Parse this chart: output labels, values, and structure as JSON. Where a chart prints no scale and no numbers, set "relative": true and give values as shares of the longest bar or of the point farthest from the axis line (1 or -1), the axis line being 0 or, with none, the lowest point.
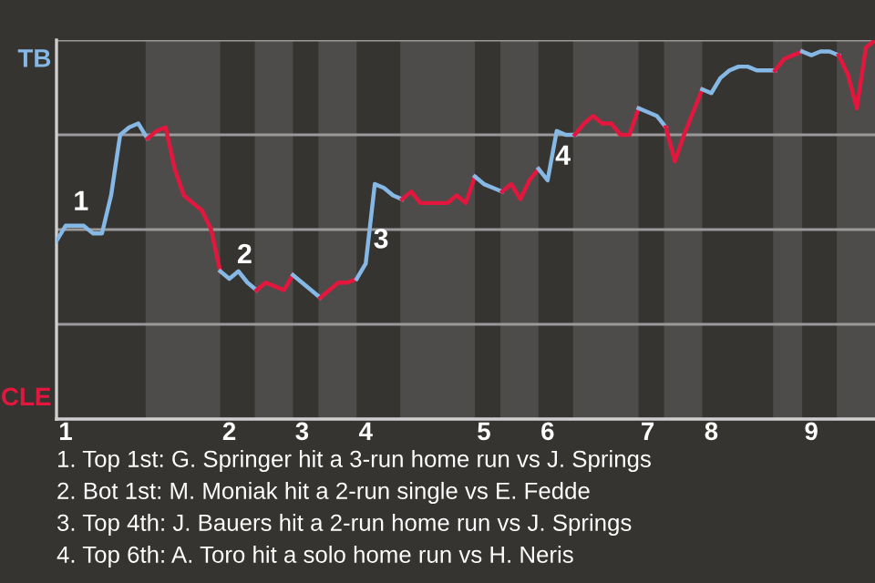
{
  "chart_data": {
    "type": "line",
    "relative": true,
    "categories": [
      null,
      "1",
      null,
      null,
      null,
      null,
      null,
      null,
      null,
      null,
      null,
      null,
      null,
      null,
      null,
      null,
      null,
      null,
      null,
      "2",
      null,
      null,
      null,
      null,
      null,
      null,
      null,
      "3",
      null,
      null,
      null,
      null,
      null,
      null,
      "4",
      null,
      null,
      null,
      null,
      null,
      null,
      null,
      null,
      null,
      null,
      null,
      null,
      "5",
      null,
      null,
      null,
      null,
      null,
      null,
      "6",
      null,
      null,
      null,
      null,
      null,
      null,
      null,
      null,
      null,
      null,
      "7",
      null,
      null,
      null,
      null,
      null,
      null,
      "8",
      null,
      null,
      null,
      null,
      null,
      null,
      null,
      null,
      null,
      null,
      "9",
      null,
      null,
      null,
      null,
      null,
      null,
      null
    ],
    "series": [
      {
        "color": "#86b8e6",
        "values": [
          0.47,
          0.51,
          0.51,
          0.51,
          0.49,
          0.49,
          0.59,
          0.75,
          0.77,
          0.78,
          0.74,
          null,
          null,
          null,
          null,
          null,
          null,
          null,
          null,
          null,
          null,
          null,
          null,
          null,
          null,
          null,
          null,
          null,
          null,
          null,
          null,
          null,
          null,
          null,
          null,
          null,
          null,
          null,
          null,
          null,
          null,
          null,
          null,
          null,
          null,
          null,
          null,
          null,
          null,
          null,
          null,
          null,
          null,
          null,
          null,
          null,
          null,
          null,
          null,
          null,
          null,
          null,
          null,
          null,
          null,
          null,
          null,
          null,
          null,
          null,
          null,
          null,
          null,
          null,
          null,
          null,
          null,
          null,
          null,
          null,
          null,
          null,
          null,
          null,
          null,
          null,
          null,
          null,
          null,
          null,
          null
        ]
      },
      {
        "color": "#e3173e",
        "values": [
          null,
          null,
          null,
          null,
          null,
          null,
          null,
          null,
          null,
          null,
          0.74,
          0.76,
          0.77,
          0.66,
          0.59,
          0.57,
          0.55,
          0.5,
          0.39,
          null,
          null,
          null,
          null,
          null,
          null,
          null,
          null,
          null,
          null,
          null,
          null,
          null,
          null,
          null,
          null,
          null,
          null,
          null,
          null,
          null,
          null,
          null,
          null,
          null,
          null,
          null,
          null,
          null,
          null,
          null,
          null,
          null,
          null,
          null,
          null,
          null,
          null,
          null,
          null,
          null,
          null,
          null,
          null,
          null,
          null,
          null,
          null,
          null,
          null,
          null,
          null,
          null,
          null,
          null,
          null,
          null,
          null,
          null,
          null,
          null,
          null,
          null,
          null,
          null,
          null,
          null,
          null,
          null,
          null,
          null,
          null
        ]
      },
      {
        "color": "#86b8e6",
        "values": [
          null,
          null,
          null,
          null,
          null,
          null,
          null,
          null,
          null,
          null,
          null,
          null,
          null,
          null,
          null,
          null,
          null,
          null,
          0.39,
          0.37,
          0.39,
          0.36,
          0.34,
          null,
          null,
          null,
          null,
          null,
          null,
          null,
          null,
          null,
          null,
          null,
          null,
          null,
          null,
          null,
          null,
          null,
          null,
          null,
          null,
          null,
          null,
          null,
          null,
          null,
          null,
          null,
          null,
          null,
          null,
          null,
          null,
          null,
          null,
          null,
          null,
          null,
          null,
          null,
          null,
          null,
          null,
          null,
          null,
          null,
          null,
          null,
          null,
          null,
          null,
          null,
          null,
          null,
          null,
          null,
          null,
          null,
          null,
          null,
          null,
          null,
          null,
          null,
          null,
          null,
          null,
          null,
          null
        ]
      },
      {
        "color": "#e3173e",
        "values": [
          null,
          null,
          null,
          null,
          null,
          null,
          null,
          null,
          null,
          null,
          null,
          null,
          null,
          null,
          null,
          null,
          null,
          null,
          null,
          null,
          null,
          null,
          0.34,
          0.36,
          0.35,
          0.34,
          0.38,
          null,
          null,
          null,
          null,
          null,
          null,
          null,
          null,
          null,
          null,
          null,
          null,
          null,
          null,
          null,
          null,
          null,
          null,
          null,
          null,
          null,
          null,
          null,
          null,
          null,
          null,
          null,
          null,
          null,
          null,
          null,
          null,
          null,
          null,
          null,
          null,
          null,
          null,
          null,
          null,
          null,
          null,
          null,
          null,
          null,
          null,
          null,
          null,
          null,
          null,
          null,
          null,
          null,
          null,
          null,
          null,
          null,
          null,
          null,
          null,
          null,
          null,
          null,
          null
        ]
      },
      {
        "color": "#86b8e6",
        "values": [
          null,
          null,
          null,
          null,
          null,
          null,
          null,
          null,
          null,
          null,
          null,
          null,
          null,
          null,
          null,
          null,
          null,
          null,
          null,
          null,
          null,
          null,
          null,
          null,
          null,
          null,
          0.38,
          0.36,
          0.34,
          0.32,
          null,
          null,
          null,
          null,
          null,
          null,
          null,
          null,
          null,
          null,
          null,
          null,
          null,
          null,
          null,
          null,
          null,
          null,
          null,
          null,
          null,
          null,
          null,
          null,
          null,
          null,
          null,
          null,
          null,
          null,
          null,
          null,
          null,
          null,
          null,
          null,
          null,
          null,
          null,
          null,
          null,
          null,
          null,
          null,
          null,
          null,
          null,
          null,
          null,
          null,
          null,
          null,
          null,
          null,
          null,
          null,
          null,
          null,
          null,
          null,
          null
        ]
      },
      {
        "color": "#e3173e",
        "values": [
          null,
          null,
          null,
          null,
          null,
          null,
          null,
          null,
          null,
          null,
          null,
          null,
          null,
          null,
          null,
          null,
          null,
          null,
          null,
          null,
          null,
          null,
          null,
          null,
          null,
          null,
          null,
          null,
          null,
          0.32,
          0.34,
          0.36,
          0.36,
          0.37,
          null,
          null,
          null,
          null,
          null,
          null,
          null,
          null,
          null,
          null,
          null,
          null,
          null,
          null,
          null,
          null,
          null,
          null,
          null,
          null,
          null,
          null,
          null,
          null,
          null,
          null,
          null,
          null,
          null,
          null,
          null,
          null,
          null,
          null,
          null,
          null,
          null,
          null,
          null,
          null,
          null,
          null,
          null,
          null,
          null,
          null,
          null,
          null,
          null,
          null,
          null,
          null,
          null,
          null,
          null,
          null,
          null
        ]
      },
      {
        "color": "#86b8e6",
        "values": [
          null,
          null,
          null,
          null,
          null,
          null,
          null,
          null,
          null,
          null,
          null,
          null,
          null,
          null,
          null,
          null,
          null,
          null,
          null,
          null,
          null,
          null,
          null,
          null,
          null,
          null,
          null,
          null,
          null,
          null,
          null,
          null,
          null,
          0.37,
          0.41,
          0.62,
          0.61,
          0.59,
          0.58,
          null,
          null,
          null,
          null,
          null,
          null,
          null,
          null,
          null,
          null,
          null,
          null,
          null,
          null,
          null,
          null,
          null,
          null,
          null,
          null,
          null,
          null,
          null,
          null,
          null,
          null,
          null,
          null,
          null,
          null,
          null,
          null,
          null,
          null,
          null,
          null,
          null,
          null,
          null,
          null,
          null,
          null,
          null,
          null,
          null,
          null,
          null,
          null,
          null,
          null,
          null,
          null
        ]
      },
      {
        "color": "#e3173e",
        "values": [
          null,
          null,
          null,
          null,
          null,
          null,
          null,
          null,
          null,
          null,
          null,
          null,
          null,
          null,
          null,
          null,
          null,
          null,
          null,
          null,
          null,
          null,
          null,
          null,
          null,
          null,
          null,
          null,
          null,
          null,
          null,
          null,
          null,
          null,
          null,
          null,
          null,
          null,
          0.58,
          0.6,
          0.57,
          0.57,
          0.57,
          0.57,
          0.59,
          0.57,
          0.64,
          null,
          null,
          null,
          null,
          null,
          null,
          null,
          null,
          null,
          null,
          null,
          null,
          null,
          null,
          null,
          null,
          null,
          null,
          null,
          null,
          null,
          null,
          null,
          null,
          null,
          null,
          null,
          null,
          null,
          null,
          null,
          null,
          null,
          null,
          null,
          null,
          null,
          null,
          null,
          null,
          null,
          null,
          null,
          null
        ]
      },
      {
        "color": "#86b8e6",
        "values": [
          null,
          null,
          null,
          null,
          null,
          null,
          null,
          null,
          null,
          null,
          null,
          null,
          null,
          null,
          null,
          null,
          null,
          null,
          null,
          null,
          null,
          null,
          null,
          null,
          null,
          null,
          null,
          null,
          null,
          null,
          null,
          null,
          null,
          null,
          null,
          null,
          null,
          null,
          null,
          null,
          null,
          null,
          null,
          null,
          null,
          null,
          0.64,
          0.62,
          0.61,
          0.6,
          null,
          null,
          null,
          null,
          null,
          null,
          null,
          null,
          null,
          null,
          null,
          null,
          null,
          null,
          null,
          null,
          null,
          null,
          null,
          null,
          null,
          null,
          null,
          null,
          null,
          null,
          null,
          null,
          null,
          null,
          null,
          null,
          null,
          null,
          null,
          null,
          null,
          null,
          null,
          null,
          null
        ]
      },
      {
        "color": "#e3173e",
        "values": [
          null,
          null,
          null,
          null,
          null,
          null,
          null,
          null,
          null,
          null,
          null,
          null,
          null,
          null,
          null,
          null,
          null,
          null,
          null,
          null,
          null,
          null,
          null,
          null,
          null,
          null,
          null,
          null,
          null,
          null,
          null,
          null,
          null,
          null,
          null,
          null,
          null,
          null,
          null,
          null,
          null,
          null,
          null,
          null,
          null,
          null,
          null,
          null,
          null,
          0.6,
          0.62,
          0.58,
          0.63,
          0.66,
          null,
          null,
          null,
          null,
          null,
          null,
          null,
          null,
          null,
          null,
          null,
          null,
          null,
          null,
          null,
          null,
          null,
          null,
          null,
          null,
          null,
          null,
          null,
          null,
          null,
          null,
          null,
          null,
          null,
          null,
          null,
          null,
          null,
          null,
          null,
          null,
          null
        ]
      },
      {
        "color": "#86b8e6",
        "values": [
          null,
          null,
          null,
          null,
          null,
          null,
          null,
          null,
          null,
          null,
          null,
          null,
          null,
          null,
          null,
          null,
          null,
          null,
          null,
          null,
          null,
          null,
          null,
          null,
          null,
          null,
          null,
          null,
          null,
          null,
          null,
          null,
          null,
          null,
          null,
          null,
          null,
          null,
          null,
          null,
          null,
          null,
          null,
          null,
          null,
          null,
          null,
          null,
          null,
          null,
          null,
          null,
          null,
          0.66,
          0.63,
          0.76,
          0.75,
          0.75,
          null,
          null,
          null,
          null,
          null,
          null,
          null,
          null,
          null,
          null,
          null,
          null,
          null,
          null,
          null,
          null,
          null,
          null,
          null,
          null,
          null,
          null,
          null,
          null,
          null,
          null,
          null,
          null,
          null,
          null,
          null,
          null,
          null
        ]
      },
      {
        "color": "#e3173e",
        "values": [
          null,
          null,
          null,
          null,
          null,
          null,
          null,
          null,
          null,
          null,
          null,
          null,
          null,
          null,
          null,
          null,
          null,
          null,
          null,
          null,
          null,
          null,
          null,
          null,
          null,
          null,
          null,
          null,
          null,
          null,
          null,
          null,
          null,
          null,
          null,
          null,
          null,
          null,
          null,
          null,
          null,
          null,
          null,
          null,
          null,
          null,
          null,
          null,
          null,
          null,
          null,
          null,
          null,
          null,
          null,
          null,
          null,
          0.75,
          0.78,
          0.8,
          0.78,
          0.78,
          0.75,
          0.75,
          0.82,
          null,
          null,
          null,
          null,
          null,
          null,
          null,
          null,
          null,
          null,
          null,
          null,
          null,
          null,
          null,
          null,
          null,
          null,
          null,
          null,
          null,
          null,
          null,
          null,
          null,
          null
        ]
      },
      {
        "color": "#86b8e6",
        "values": [
          null,
          null,
          null,
          null,
          null,
          null,
          null,
          null,
          null,
          null,
          null,
          null,
          null,
          null,
          null,
          null,
          null,
          null,
          null,
          null,
          null,
          null,
          null,
          null,
          null,
          null,
          null,
          null,
          null,
          null,
          null,
          null,
          null,
          null,
          null,
          null,
          null,
          null,
          null,
          null,
          null,
          null,
          null,
          null,
          null,
          null,
          null,
          null,
          null,
          null,
          null,
          null,
          null,
          null,
          null,
          null,
          null,
          null,
          null,
          null,
          null,
          null,
          null,
          null,
          0.82,
          0.81,
          0.8,
          0.77,
          null,
          null,
          null,
          null,
          null,
          null,
          null,
          null,
          null,
          null,
          null,
          null,
          null,
          null,
          null,
          null,
          null,
          null,
          null,
          null,
          null,
          null,
          null
        ]
      },
      {
        "color": "#e3173e",
        "values": [
          null,
          null,
          null,
          null,
          null,
          null,
          null,
          null,
          null,
          null,
          null,
          null,
          null,
          null,
          null,
          null,
          null,
          null,
          null,
          null,
          null,
          null,
          null,
          null,
          null,
          null,
          null,
          null,
          null,
          null,
          null,
          null,
          null,
          null,
          null,
          null,
          null,
          null,
          null,
          null,
          null,
          null,
          null,
          null,
          null,
          null,
          null,
          null,
          null,
          null,
          null,
          null,
          null,
          null,
          null,
          null,
          null,
          null,
          null,
          null,
          null,
          null,
          null,
          null,
          null,
          null,
          null,
          0.77,
          0.68,
          0.75,
          0.81,
          0.87,
          null,
          null,
          null,
          null,
          null,
          null,
          null,
          null,
          null,
          null,
          null,
          null,
          null,
          null,
          null,
          null,
          null,
          null,
          null
        ]
      },
      {
        "color": "#86b8e6",
        "values": [
          null,
          null,
          null,
          null,
          null,
          null,
          null,
          null,
          null,
          null,
          null,
          null,
          null,
          null,
          null,
          null,
          null,
          null,
          null,
          null,
          null,
          null,
          null,
          null,
          null,
          null,
          null,
          null,
          null,
          null,
          null,
          null,
          null,
          null,
          null,
          null,
          null,
          null,
          null,
          null,
          null,
          null,
          null,
          null,
          null,
          null,
          null,
          null,
          null,
          null,
          null,
          null,
          null,
          null,
          null,
          null,
          null,
          null,
          null,
          null,
          null,
          null,
          null,
          null,
          null,
          null,
          null,
          null,
          null,
          null,
          null,
          0.87,
          0.86,
          0.9,
          0.92,
          0.93,
          0.93,
          0.92,
          0.92,
          0.92,
          null,
          null,
          null,
          null,
          null,
          null,
          null,
          null,
          null,
          null,
          null
        ]
      },
      {
        "color": "#e3173e",
        "values": [
          null,
          null,
          null,
          null,
          null,
          null,
          null,
          null,
          null,
          null,
          null,
          null,
          null,
          null,
          null,
          null,
          null,
          null,
          null,
          null,
          null,
          null,
          null,
          null,
          null,
          null,
          null,
          null,
          null,
          null,
          null,
          null,
          null,
          null,
          null,
          null,
          null,
          null,
          null,
          null,
          null,
          null,
          null,
          null,
          null,
          null,
          null,
          null,
          null,
          null,
          null,
          null,
          null,
          null,
          null,
          null,
          null,
          null,
          null,
          null,
          null,
          null,
          null,
          null,
          null,
          null,
          null,
          null,
          null,
          null,
          null,
          null,
          null,
          null,
          null,
          null,
          null,
          null,
          null,
          0.92,
          0.95,
          0.96,
          0.97,
          null,
          null,
          null,
          null,
          null,
          null,
          null,
          null
        ]
      },
      {
        "color": "#86b8e6",
        "values": [
          null,
          null,
          null,
          null,
          null,
          null,
          null,
          null,
          null,
          null,
          null,
          null,
          null,
          null,
          null,
          null,
          null,
          null,
          null,
          null,
          null,
          null,
          null,
          null,
          null,
          null,
          null,
          null,
          null,
          null,
          null,
          null,
          null,
          null,
          null,
          null,
          null,
          null,
          null,
          null,
          null,
          null,
          null,
          null,
          null,
          null,
          null,
          null,
          null,
          null,
          null,
          null,
          null,
          null,
          null,
          null,
          null,
          null,
          null,
          null,
          null,
          null,
          null,
          null,
          null,
          null,
          null,
          null,
          null,
          null,
          null,
          null,
          null,
          null,
          null,
          null,
          null,
          null,
          null,
          null,
          null,
          null,
          0.97,
          0.96,
          0.97,
          0.97,
          0.96,
          null,
          null,
          null,
          null
        ]
      },
      {
        "color": "#e3173e",
        "values": [
          null,
          null,
          null,
          null,
          null,
          null,
          null,
          null,
          null,
          null,
          null,
          null,
          null,
          null,
          null,
          null,
          null,
          null,
          null,
          null,
          null,
          null,
          null,
          null,
          null,
          null,
          null,
          null,
          null,
          null,
          null,
          null,
          null,
          null,
          null,
          null,
          null,
          null,
          null,
          null,
          null,
          null,
          null,
          null,
          null,
          null,
          null,
          null,
          null,
          null,
          null,
          null,
          null,
          null,
          null,
          null,
          null,
          null,
          null,
          null,
          null,
          null,
          null,
          null,
          null,
          null,
          null,
          null,
          null,
          null,
          null,
          null,
          null,
          null,
          null,
          null,
          null,
          null,
          null,
          null,
          null,
          null,
          null,
          null,
          null,
          null,
          0.96,
          0.91,
          0.82,
          0.98,
          1
        ]
      }
    ],
    "ref_lines": [
      {
        "axis": "y",
        "value": 0.25,
        "color": "#9a9a9a"
      },
      {
        "axis": "y",
        "value": 0.5,
        "color": "#9a9a9a"
      },
      {
        "axis": "y",
        "value": 0.75,
        "color": "#9a9a9a"
      },
      {
        "axis": "y",
        "value": 1,
        "color": "#9a9a9a"
      }
    ],
    "annotations": [
      "TB",
      "CLE",
      {
        "text": "1",
        "x": "1",
        "y": 0.51
      },
      {
        "text": "2",
        "x": "2",
        "y": 0.37
      },
      {
        "text": "3",
        "x": "4",
        "y": 0.41
      },
      {
        "text": "4",
        "x": "6",
        "y": 0.63
      },
      "1. Top 1st: G. Springer hit a 3-run home run vs J. Springs",
      "2. Bot 1st: M. Moniak hit a 2-run single vs E. Fedde",
      "3. Top 4th: J. Bauers hit a 2-run home run vs J. Springs",
      "4. Top 6th: A. Toro hit a solo home run vs H. Neris"
    ]
  }
}
